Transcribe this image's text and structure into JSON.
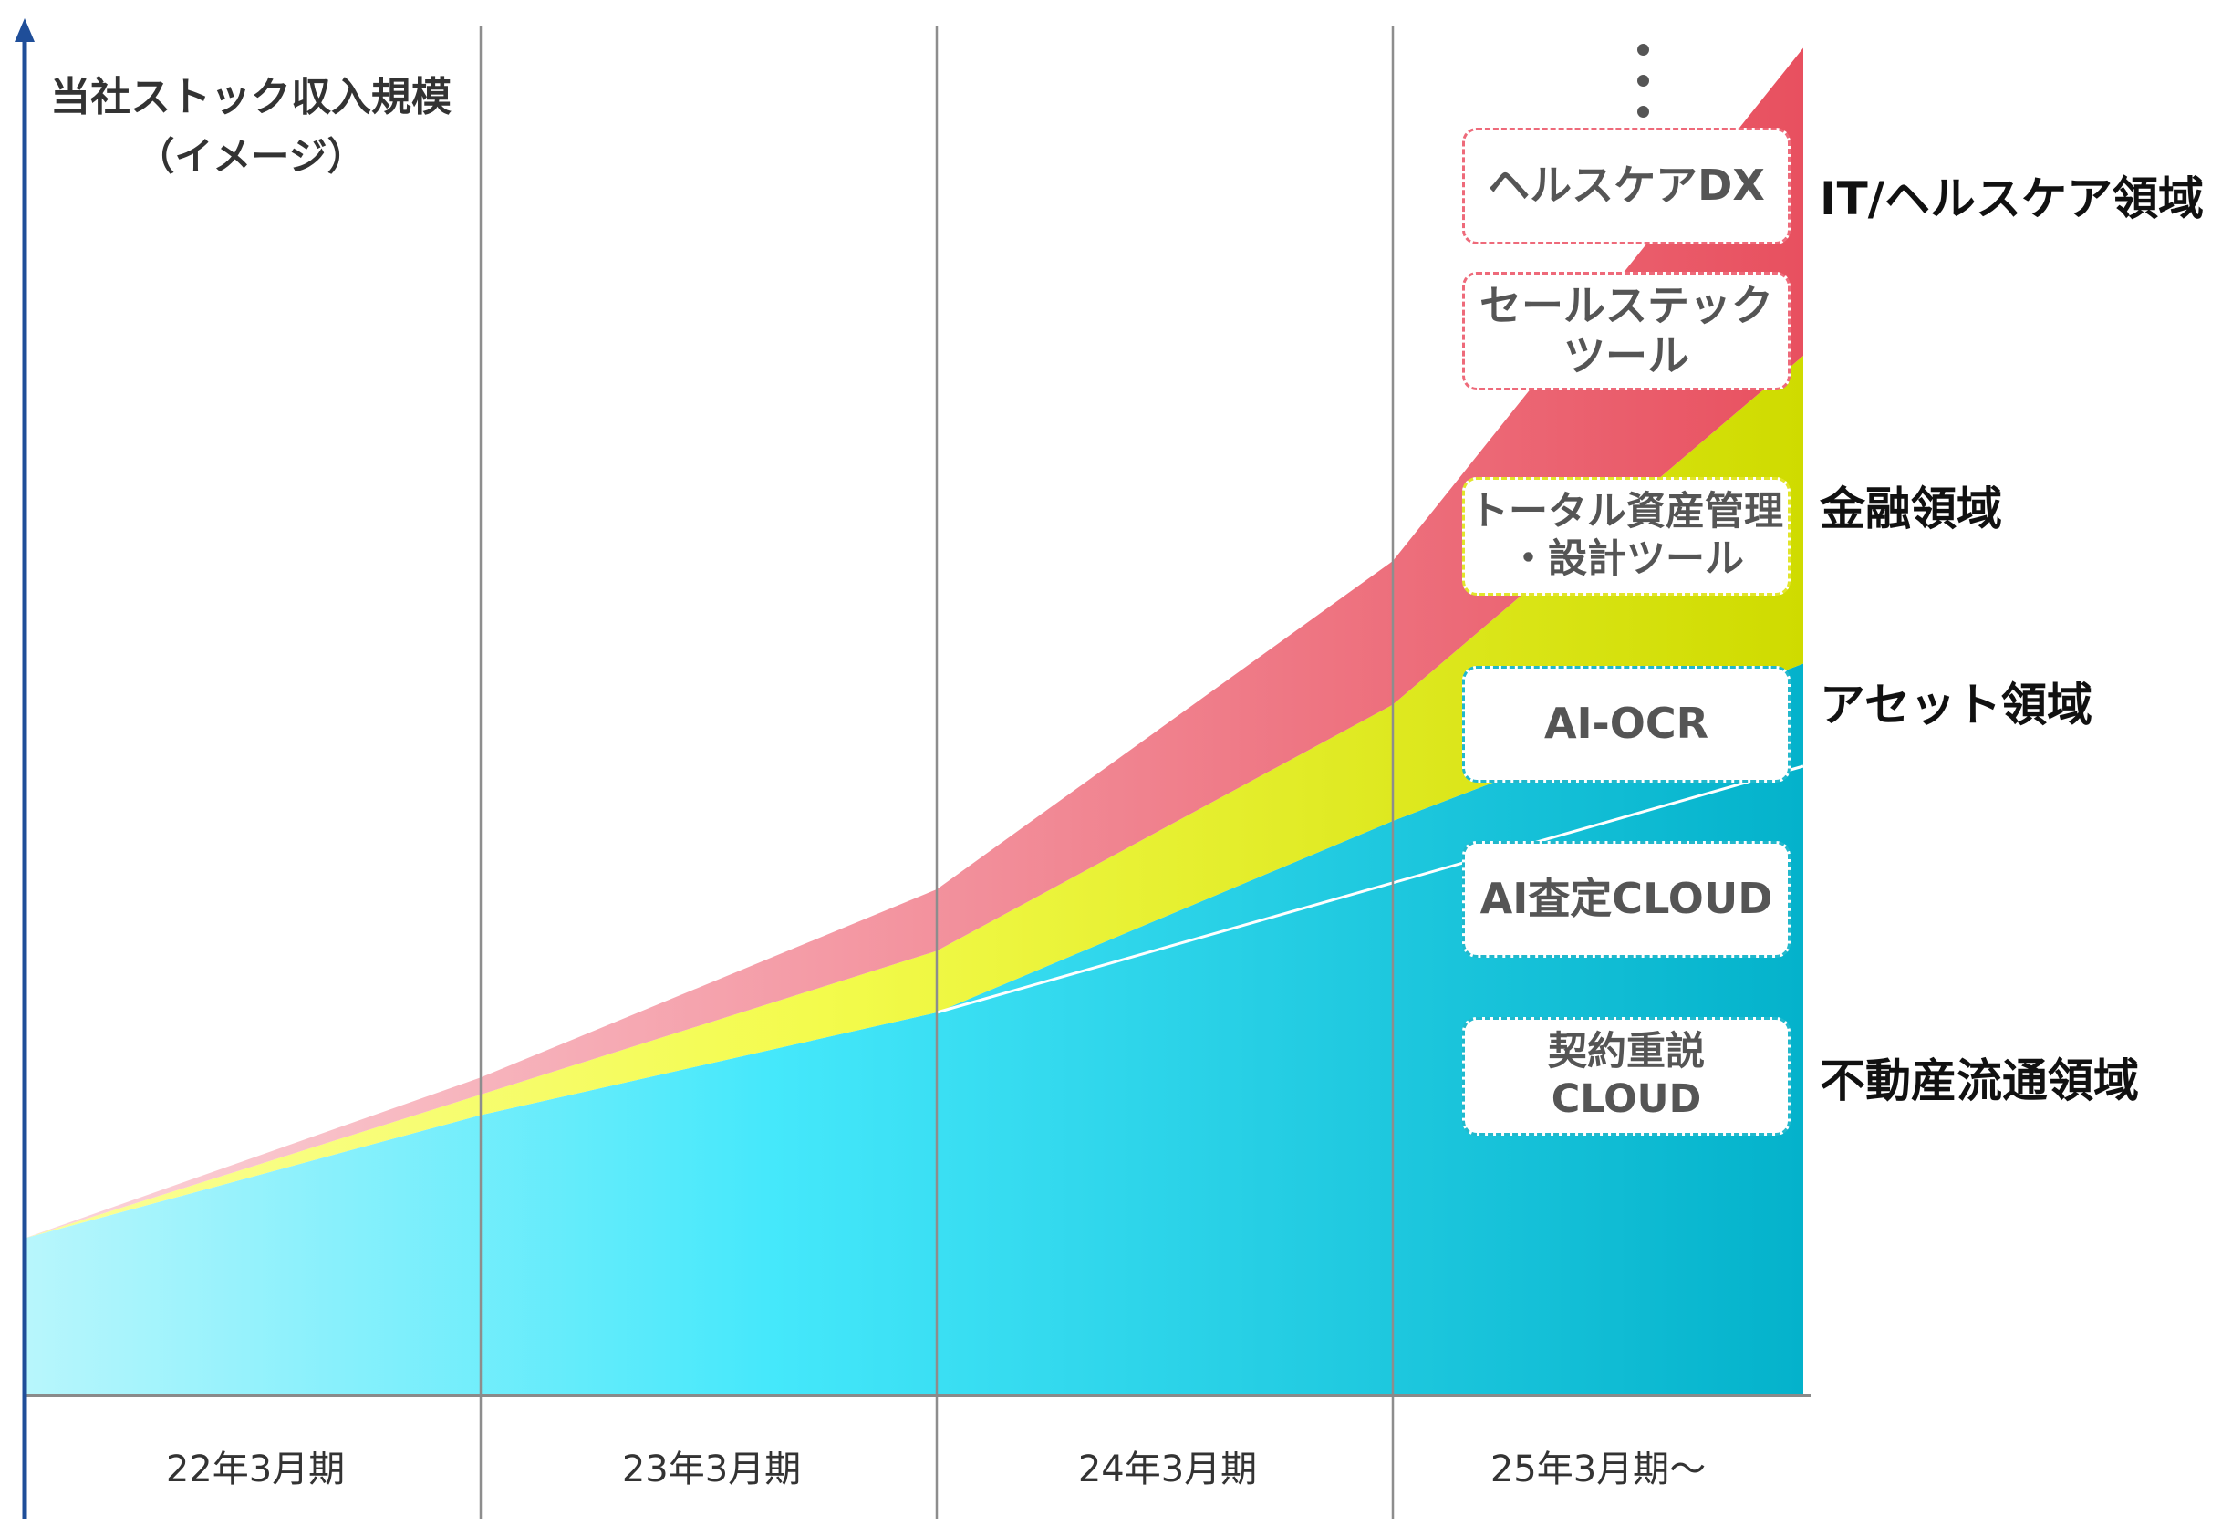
{
  "chart_data": {
    "type": "area",
    "stacked": true,
    "title": "当社ストック収入規模",
    "subtitle": "（イメージ）",
    "categories": [
      "22年3月期",
      "23年3月期",
      "24年3月期",
      "25年3月期〜"
    ],
    "x": [
      0,
      1,
      2,
      3,
      3.9
    ],
    "series": [
      {
        "name": "不動産流通領域",
        "values": [
          2.3,
          4.1,
          5.6,
          8.4,
          10.7
        ],
        "color": "#2bd4ef"
      },
      {
        "name": "金融領域",
        "values": [
          0,
          0.3,
          0.9,
          1.7,
          4.5
        ],
        "color": "#e5ee2a"
      },
      {
        "name": "IT/ヘルスケア領域",
        "values": [
          0,
          0.25,
          0.9,
          2.1,
          4.5
        ],
        "color": "#ec6577"
      }
    ],
    "trend_line": [
      [
        2,
        5.6
      ],
      [
        3.9,
        9.2
      ]
    ],
    "grid": "vertical",
    "ylim": [
      0,
      19.7
    ],
    "products": [
      {
        "label": "ヘルスケアDX",
        "domain": "IT/ヘルスケア領域",
        "border": "#ee6a7a"
      },
      {
        "label": "セールステック\nツール",
        "domain": "IT/ヘルスケア領域",
        "border": "#ee6a7a"
      },
      {
        "label": "トータル資産管理\n・設計ツール",
        "domain": "金融領域",
        "border": "#e2e52a"
      },
      {
        "label": "AI-OCR",
        "domain": "アセット領域",
        "border": "#22b8cc"
      },
      {
        "label": "AI査定CLOUD",
        "domain": "不動産流通領域",
        "border": "#22b8cc"
      },
      {
        "label": "契約重説\nCLOUD",
        "domain": "不動産流通領域",
        "border": "#22b8cc"
      }
    ],
    "domain_labels": [
      "IT/ヘルスケア領域",
      "金融領域",
      "アセット領域",
      "不動産流通領域"
    ]
  }
}
